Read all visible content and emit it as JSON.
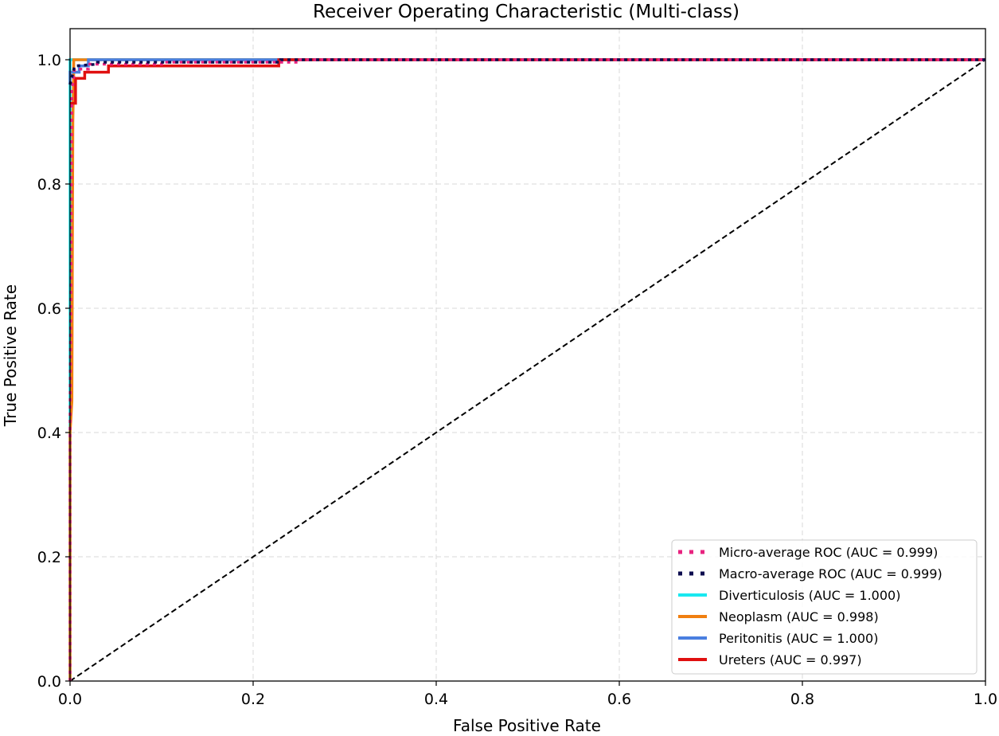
{
  "chart_data": {
    "type": "line",
    "title": "Receiver Operating Characteristic (Multi-class)",
    "xlabel": "False Positive Rate",
    "ylabel": "True Positive Rate",
    "xlim": [
      0.0,
      1.0
    ],
    "ylim": [
      0.0,
      1.05
    ],
    "xticks": [
      "0.0",
      "0.2",
      "0.4",
      "0.6",
      "0.8",
      "1.0"
    ],
    "yticks": [
      "0.0",
      "0.2",
      "0.4",
      "0.6",
      "0.8",
      "1.0"
    ],
    "grid": true,
    "legend_position": "lower-right",
    "series": [
      {
        "name": "Micro-average ROC (AUC = 0.999)",
        "color": "#e8237f",
        "style": "dotted",
        "points": [
          [
            0.0,
            0.0
          ],
          [
            0.0,
            0.4
          ],
          [
            0.002,
            0.95
          ],
          [
            0.005,
            0.985
          ],
          [
            0.02,
            0.985
          ],
          [
            0.02,
            0.993
          ],
          [
            0.1,
            0.993
          ],
          [
            0.1,
            0.996
          ],
          [
            0.25,
            0.996
          ],
          [
            0.25,
            1.0
          ],
          [
            1.0,
            1.0
          ]
        ]
      },
      {
        "name": "Macro-average ROC (AUC = 0.999)",
        "color": "#0d0d4f",
        "style": "dotted",
        "points": [
          [
            0.0,
            0.96
          ],
          [
            0.005,
            0.99
          ],
          [
            0.03,
            0.993
          ],
          [
            0.03,
            0.996
          ],
          [
            0.23,
            0.996
          ],
          [
            0.23,
            1.0
          ],
          [
            1.0,
            1.0
          ]
        ]
      },
      {
        "name": "Diverticulosis (AUC = 1.000)",
        "color": "#19e8f0",
        "style": "solid",
        "points": [
          [
            0.0,
            0.0
          ],
          [
            0.0,
            1.0
          ],
          [
            1.0,
            1.0
          ]
        ]
      },
      {
        "name": "Neoplasm (AUC = 0.998)",
        "color": "#f07f10",
        "style": "solid",
        "points": [
          [
            0.0,
            0.0
          ],
          [
            0.0,
            0.4
          ],
          [
            0.002,
            0.45
          ],
          [
            0.003,
            0.9
          ],
          [
            0.004,
            0.98
          ],
          [
            0.004,
            1.0
          ],
          [
            1.0,
            1.0
          ]
        ]
      },
      {
        "name": "Peritonitis (AUC = 1.000)",
        "color": "#4a7fe0",
        "style": "solid",
        "points": [
          [
            0.0,
            0.96
          ],
          [
            0.0,
            0.98
          ],
          [
            0.01,
            0.98
          ],
          [
            0.01,
            0.99
          ],
          [
            0.02,
            0.99
          ],
          [
            0.02,
            1.0
          ],
          [
            1.0,
            1.0
          ]
        ]
      },
      {
        "name": "Ureters (AUC = 0.997)",
        "color": "#e01010",
        "style": "solid",
        "points": [
          [
            0.0,
            0.93
          ],
          [
            0.006,
            0.93
          ],
          [
            0.006,
            0.97
          ],
          [
            0.016,
            0.97
          ],
          [
            0.016,
            0.98
          ],
          [
            0.042,
            0.98
          ],
          [
            0.042,
            0.99
          ],
          [
            0.228,
            0.99
          ],
          [
            0.228,
            1.0
          ],
          [
            1.0,
            1.0
          ]
        ]
      }
    ],
    "reference_line": {
      "color": "#000000",
      "style": "dashed",
      "points": [
        [
          0.0,
          0.0
        ],
        [
          1.0,
          1.0
        ]
      ]
    }
  }
}
